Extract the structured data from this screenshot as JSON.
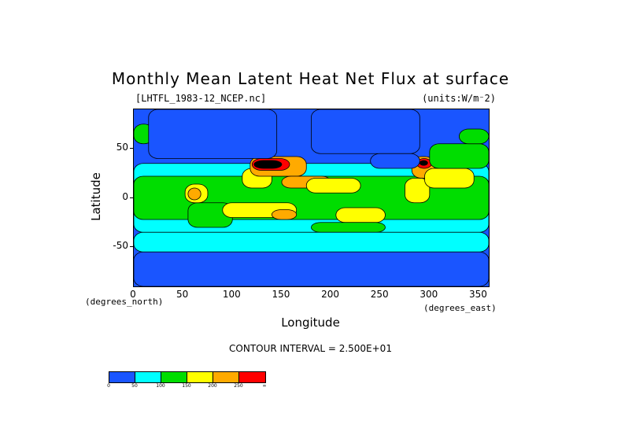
{
  "chart_data": {
    "type": "heatmap",
    "title": "Monthly Mean Latent Heat Net Flux at surface",
    "file_label": "[LHTFL_1983-12_NCEP.nc]",
    "units_label": "(units:W/m⁻2)",
    "xlabel": "Longitude",
    "ylabel": "Latitude",
    "x_unit_label": "(degrees_east)",
    "y_unit_label": "(degrees_north)",
    "xlim": [
      0,
      360
    ],
    "ylim": [
      -90,
      90
    ],
    "x_ticks": [
      0,
      50,
      100,
      150,
      200,
      250,
      300,
      350
    ],
    "y_ticks": [
      50,
      0,
      -50
    ],
    "contour_interval_text": "CONTOUR INTERVAL = 2.500E+01",
    "colorbar": {
      "levels": [
        "0",
        "50",
        "100",
        "150",
        "200",
        "250",
        "∞"
      ],
      "colors": [
        "#1a55ff",
        "#00ffff",
        "#00dd00",
        "#ffff00",
        "#ffaa00",
        "#ff0000"
      ]
    },
    "regions": [
      {
        "level": 1,
        "lon": [
          0,
          360
        ],
        "lat": [
          -35,
          35
        ]
      },
      {
        "level": 2,
        "lon": [
          0,
          360
        ],
        "lat": [
          -22,
          22
        ]
      },
      {
        "level": 2,
        "lon": [
          55,
          100
        ],
        "lat": [
          -30,
          -5
        ]
      },
      {
        "level": 3,
        "lon": [
          52,
          75
        ],
        "lat": [
          -5,
          14
        ]
      },
      {
        "level": 4,
        "lon": [
          55,
          68
        ],
        "lat": [
          -2,
          10
        ]
      },
      {
        "level": 3,
        "lon": [
          110,
          140
        ],
        "lat": [
          10,
          30
        ]
      },
      {
        "level": 4,
        "lon": [
          118,
          175
        ],
        "lat": [
          22,
          42
        ]
      },
      {
        "level": 5,
        "lon": [
          120,
          158
        ],
        "lat": [
          28,
          40
        ]
      },
      {
        "level": 6,
        "lon": [
          122,
          150
        ],
        "lat": [
          30,
          38
        ]
      },
      {
        "level": 4,
        "lon": [
          150,
          200
        ],
        "lat": [
          10,
          22
        ]
      },
      {
        "level": 3,
        "lon": [
          175,
          230
        ],
        "lat": [
          5,
          20
        ]
      },
      {
        "level": 3,
        "lon": [
          90,
          165
        ],
        "lat": [
          -20,
          -5
        ]
      },
      {
        "level": 4,
        "lon": [
          140,
          165
        ],
        "lat": [
          -22,
          -12
        ]
      },
      {
        "level": 3,
        "lon": [
          205,
          255
        ],
        "lat": [
          -25,
          -10
        ]
      },
      {
        "level": 2,
        "lon": [
          180,
          255
        ],
        "lat": [
          -35,
          -25
        ]
      },
      {
        "level": 3,
        "lon": [
          275,
          300
        ],
        "lat": [
          -5,
          20
        ]
      },
      {
        "level": 4,
        "lon": [
          282,
          305
        ],
        "lat": [
          20,
          42
        ]
      },
      {
        "level": 5,
        "lon": [
          287,
          302
        ],
        "lat": [
          30,
          40
        ]
      },
      {
        "level": 6,
        "lon": [
          290,
          298
        ],
        "lat": [
          33,
          38
        ]
      },
      {
        "level": 3,
        "lon": [
          295,
          345
        ],
        "lat": [
          10,
          30
        ]
      },
      {
        "level": 2,
        "lon": [
          300,
          360
        ],
        "lat": [
          30,
          55
        ]
      },
      {
        "level": 2,
        "lon": [
          0,
          20
        ],
        "lat": [
          55,
          75
        ]
      },
      {
        "level": 2,
        "lon": [
          330,
          360
        ],
        "lat": [
          55,
          70
        ]
      },
      {
        "level": 1,
        "lon": [
          0,
          360
        ],
        "lat": [
          -55,
          -35
        ]
      },
      {
        "level": 0,
        "lon": [
          0,
          360
        ],
        "lat": [
          -90,
          -55
        ]
      },
      {
        "level": 0,
        "lon": [
          15,
          145
        ],
        "lat": [
          40,
          90
        ]
      },
      {
        "level": 0,
        "lon": [
          180,
          290
        ],
        "lat": [
          45,
          90
        ]
      },
      {
        "level": 0,
        "lon": [
          240,
          290
        ],
        "lat": [
          30,
          45
        ]
      }
    ]
  }
}
